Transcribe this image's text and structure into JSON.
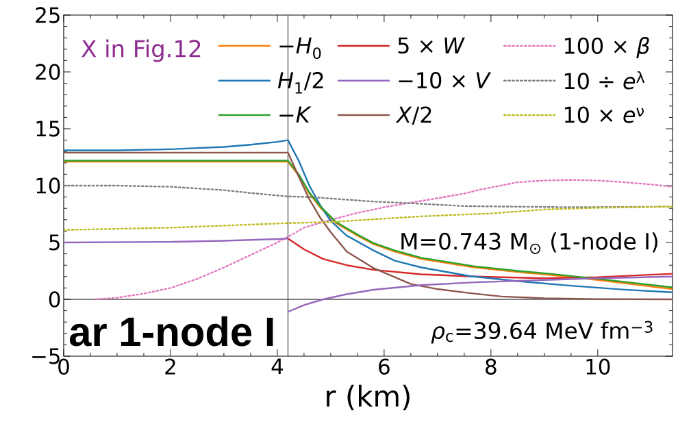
{
  "chart_data": {
    "type": "line",
    "xlabel": "r (km)",
    "xlim": [
      0,
      11.4
    ],
    "ylim": [
      -5,
      25
    ],
    "xticks": [
      0,
      2,
      4,
      6,
      8,
      10
    ],
    "yticks": [
      {
        "value": -5,
        "label": "−5"
      },
      0,
      5,
      10,
      15,
      20,
      25
    ],
    "legend": "top right",
    "series": [
      {
        "name": "−*H*$_{0}$",
        "color": "#ff7f0e",
        "line_style": "solid",
        "x": [
          0,
          4.2,
          4.4,
          4.6,
          4.8,
          5.1,
          5.5,
          5.8,
          6.2,
          6.7,
          7.7,
          8.5,
          9.1,
          10,
          11.4
        ],
        "values": [
          12.1,
          12.1,
          10.9,
          9.3,
          8.1,
          6.7,
          5.6,
          4.85,
          4.2,
          3.55,
          2.8,
          2.4,
          2.15,
          1.7,
          0.9
        ]
      },
      {
        "name": "*H*$_{1}$/2",
        "color": "#1f77b4",
        "line_style": "solid",
        "x": [
          0,
          1,
          2,
          3,
          3.5,
          4,
          4.2,
          4.4,
          4.6,
          4.8,
          5,
          5.3,
          5.8,
          6.2,
          6.7,
          7.6,
          8.5,
          9.5,
          10.5,
          11.4
        ],
        "values": [
          13.1,
          13.1,
          13.2,
          13.4,
          13.6,
          13.85,
          14.0,
          12.2,
          10.0,
          8.3,
          6.9,
          5.6,
          4.3,
          3.4,
          2.8,
          2.05,
          1.6,
          1.2,
          0.85,
          0.62
        ]
      },
      {
        "name": "−*K*",
        "color": "#2ca02c",
        "line_style": "solid",
        "x": [
          0,
          4.2,
          4.4,
          4.6,
          4.8,
          5.1,
          5.5,
          5.8,
          6.2,
          6.7,
          7.7,
          8.5,
          9.1,
          10,
          11.4
        ],
        "values": [
          12.2,
          12.2,
          11.0,
          9.4,
          8.2,
          6.8,
          5.7,
          4.95,
          4.3,
          3.65,
          2.9,
          2.5,
          2.25,
          1.8,
          1.05
        ]
      },
      {
        "name": "5 × *W*",
        "color": "#d62728",
        "line_style": "solid",
        "x": [
          4.2,
          4.5,
          4.86,
          5.3,
          5.8,
          6.7,
          7.7,
          9,
          10,
          11.4
        ],
        "values": [
          5.35,
          4.4,
          3.55,
          3.0,
          2.6,
          2.2,
          2.0,
          1.85,
          1.95,
          2.25
        ]
      },
      {
        "name": "−10 × *V*",
        "color": "#9467bd",
        "line_style": "solid",
        "x": [
          0,
          2,
          3,
          4,
          4.2
        ],
        "values": [
          5.0,
          5.05,
          5.15,
          5.3,
          5.35
        ]
      },
      {
        "name": "*X*/2",
        "color": "#8c564b",
        "line_style": "solid",
        "x": [
          0,
          2,
          4.2,
          4.4,
          4.6,
          4.8,
          5,
          5.3,
          5.8,
          6.5,
          7,
          7.6,
          8.2,
          9,
          10,
          11.4
        ],
        "values": [
          12.9,
          12.9,
          12.9,
          10.8,
          8.8,
          7.2,
          5.9,
          4.2,
          2.75,
          1.35,
          0.9,
          0.55,
          0.25,
          0.1,
          0.02,
          0
        ]
      },
      {
        "name": "100 × *β*",
        "color": "#e377c2",
        "line_style": "dotted",
        "x": [
          0.6,
          1,
          1.5,
          2,
          2.5,
          3,
          3.5,
          4,
          4.2,
          4.5,
          5,
          5.5,
          6,
          6.5,
          7,
          7.5,
          7.8,
          8.5,
          9,
          9.5,
          10,
          10.5,
          11,
          11.4
        ],
        "values": [
          0,
          0.15,
          0.5,
          1.0,
          1.8,
          2.8,
          3.9,
          5.0,
          5.5,
          6.3,
          7.0,
          7.6,
          8.1,
          8.5,
          8.9,
          9.3,
          9.65,
          10.3,
          10.45,
          10.5,
          10.45,
          10.3,
          10.1,
          9.9
        ]
      },
      {
        "name": "10 ÷ *e*$^{λ}$",
        "color": "#7f7f7f",
        "line_style": "dotted",
        "x": [
          0,
          1,
          2,
          3,
          3.5,
          4.2,
          4.6,
          5.8,
          6.7,
          7.5,
          8.5,
          9.5,
          11.4
        ],
        "values": [
          10.0,
          10.0,
          9.9,
          9.6,
          9.35,
          9.05,
          9.0,
          8.6,
          8.4,
          8.2,
          8.15,
          8.1,
          8.15
        ]
      },
      {
        "name": "10 × *e*$^{ν}$",
        "color": "#bcbd22",
        "line_style": "dotted",
        "x": [
          0,
          2,
          4.2,
          5,
          6.7,
          8,
          9,
          10,
          11.4
        ],
        "values": [
          6.1,
          6.3,
          6.7,
          6.8,
          7.3,
          7.55,
          7.9,
          8.05,
          8.15
        ]
      },
      {
        "color": "#9467bd",
        "line_style": "solid",
        "x": [
          4.2,
          4.5,
          4.86,
          5.3,
          5.8,
          6.7,
          7.7,
          9,
          10,
          11.4
        ],
        "values": [
          -1.1,
          -0.5,
          0,
          0.45,
          0.84,
          1.25,
          1.5,
          1.7,
          1.85,
          2.0
        ]
      }
    ],
    "ref_lines": [
      {
        "axis": "y",
        "value": 0,
        "color": "#000000"
      },
      {
        "axis": "x",
        "value": 4.2,
        "color": "#404040"
      }
    ],
    "annotations": [
      "X in Fig.12",
      "ar 1-node I",
      "M=0.743 M$_{⊙}$ (1-node I)",
      "*ρ*$_{c}$=39.64 MeV fm$^{−3}$"
    ]
  }
}
